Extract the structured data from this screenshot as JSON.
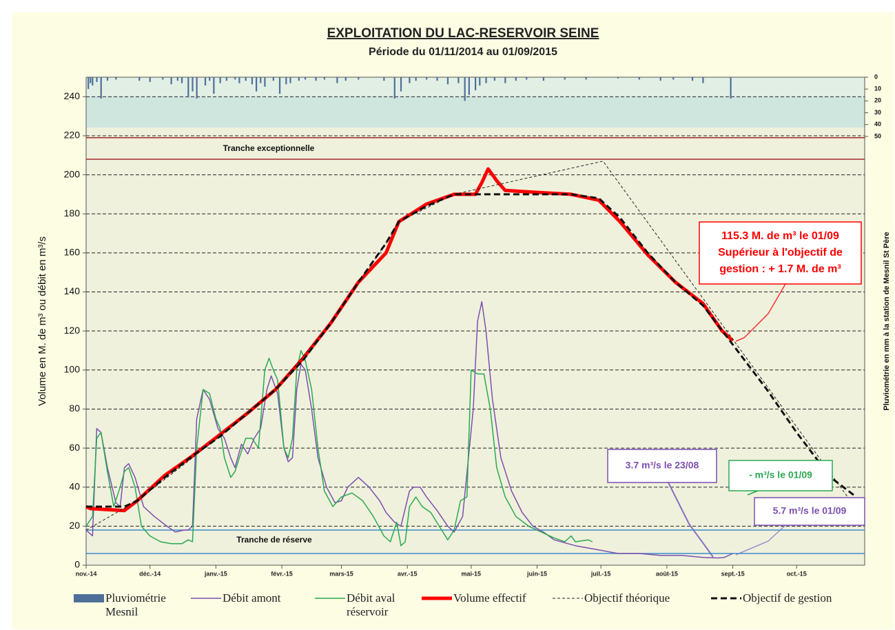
{
  "chart_data": {
    "type": "line",
    "title": "EXPLOITATION DU LAC-RESERVOIR SEINE",
    "subtitle": "Période du 01/11/2014 au 01/09/2015",
    "y_label": "Volume en M. de m³ ou débit en m³/s",
    "y2_label": "Pluviométrie en mm à la station de Mesnil St Père",
    "xlim": [
      0,
      366
    ],
    "xticks": [
      {
        "value": 0,
        "label": "nov.-14"
      },
      {
        "value": 30,
        "label": "déc.-14"
      },
      {
        "value": 61,
        "label": "janv.-15"
      },
      {
        "value": 92,
        "label": "févr.-15"
      },
      {
        "value": 120,
        "label": "mars-15"
      },
      {
        "value": 151,
        "label": "avr.-15"
      },
      {
        "value": 181,
        "label": "mai-15"
      },
      {
        "value": 212,
        "label": "juin-15"
      },
      {
        "value": 242,
        "label": "juil.-15"
      },
      {
        "value": 273,
        "label": "août-15"
      },
      {
        "value": 304,
        "label": "sept.-15"
      },
      {
        "value": 334,
        "label": "oct.-15"
      }
    ],
    "ylim": [
      0,
      250
    ],
    "yticks": [
      0,
      20,
      40,
      60,
      80,
      100,
      120,
      140,
      160,
      180,
      200,
      220,
      240
    ],
    "y2lim": [
      412,
      0
    ],
    "y2ticks": [
      0,
      10,
      20,
      30,
      40,
      50
    ],
    "grid": true,
    "reference_lines": [
      {
        "value": 219,
        "color": "#a3282a"
      },
      {
        "value": 208,
        "color": "#a3282a"
      },
      {
        "value": 18,
        "color": "#3d8ccc"
      },
      {
        "value": 6,
        "color": "#3d8ccc"
      }
    ],
    "zone_labels": [
      "Tranche exceptionnelle",
      "Tranche de réserve"
    ],
    "series": [
      {
        "name": "Pluviométrie Mesnil",
        "type": "bar",
        "axis": "y2",
        "color": "#4f6f9a",
        "x": [
          1,
          2,
          3,
          5,
          7,
          10,
          14,
          25,
          30,
          36,
          40,
          43,
          45,
          48,
          50,
          52,
          56,
          58,
          60,
          63,
          66,
          70,
          72,
          75,
          78,
          80,
          82,
          84,
          88,
          91,
          94,
          96,
          100,
          103,
          108,
          112,
          118,
          122,
          128,
          140,
          145,
          148,
          152,
          155,
          160,
          165,
          170,
          175,
          178,
          180,
          183,
          185,
          188,
          192,
          197,
          202,
          207,
          215,
          225,
          235,
          250,
          260,
          270,
          276,
          285,
          290,
          303
        ],
        "values": [
          10,
          5,
          7,
          4,
          18,
          3,
          2,
          3,
          4,
          2,
          6,
          3,
          5,
          17,
          12,
          18,
          7,
          3,
          14,
          5,
          3,
          2,
          5,
          3,
          6,
          12,
          5,
          8,
          3,
          14,
          6,
          5,
          3,
          2,
          3,
          2,
          5,
          3,
          2,
          3,
          18,
          12,
          5,
          3,
          2,
          3,
          6,
          5,
          20,
          15,
          11,
          7,
          5,
          3,
          5,
          3,
          2,
          3,
          2,
          2,
          1,
          2,
          3,
          2,
          3,
          5,
          18
        ]
      },
      {
        "name": "Débit amont",
        "color": "#7b4fb0",
        "linewidth": 1.5,
        "linestyle": "solid",
        "x": [
          0,
          3,
          5,
          7,
          10,
          14,
          16,
          18,
          20,
          23,
          27,
          32,
          38,
          42,
          46,
          48,
          50,
          52,
          55,
          58,
          62,
          65,
          68,
          70,
          73,
          76,
          79,
          82,
          85,
          87,
          90,
          93,
          95,
          97,
          99,
          101,
          103,
          106,
          109,
          113,
          117,
          120,
          123,
          128,
          133,
          138,
          141,
          145,
          148,
          152,
          154,
          157,
          160,
          165,
          170,
          173,
          177,
          182,
          184,
          186,
          188,
          191,
          195,
          200,
          205,
          210,
          215,
          220,
          230,
          240,
          250,
          260,
          270,
          280,
          290,
          297,
          300,
          304
        ],
        "values": [
          18,
          15,
          70,
          68,
          50,
          32,
          30,
          50,
          52,
          45,
          30,
          25,
          20,
          17,
          18,
          18,
          20,
          75,
          90,
          85,
          70,
          65,
          55,
          50,
          62,
          57,
          65,
          70,
          90,
          97,
          88,
          60,
          53,
          55,
          90,
          103,
          100,
          80,
          55,
          40,
          32,
          33,
          40,
          45,
          40,
          33,
          27,
          22,
          20,
          38,
          40,
          40,
          35,
          28,
          20,
          17,
          25,
          80,
          125,
          135,
          120,
          85,
          55,
          38,
          27,
          20,
          17,
          13,
          10,
          8,
          6,
          6,
          5,
          5,
          4,
          3.7,
          4,
          6
        ]
      },
      {
        "name": "Débit aval réservoir",
        "color": "#2aa852",
        "linewidth": 1.5,
        "linestyle": "solid",
        "x": [
          0,
          3,
          5,
          7,
          10,
          13,
          16,
          18,
          20,
          23,
          26,
          30,
          35,
          40,
          45,
          48,
          50,
          52,
          55,
          58,
          61,
          63,
          65,
          68,
          70,
          72,
          75,
          78,
          81,
          84,
          86,
          88,
          90,
          93,
          95,
          97,
          99,
          101,
          103,
          106,
          109,
          112,
          116,
          120,
          125,
          130,
          135,
          140,
          143,
          146,
          148,
          150,
          152,
          155,
          158,
          162,
          166,
          170,
          173,
          176,
          179,
          181,
          184,
          187,
          190,
          193,
          197,
          202,
          208,
          214,
          220,
          225,
          228,
          230,
          236,
          238
        ],
        "values": [
          20,
          25,
          65,
          68,
          48,
          30,
          40,
          48,
          50,
          40,
          20,
          15,
          12,
          11,
          11,
          13,
          12,
          60,
          90,
          88,
          75,
          70,
          55,
          45,
          48,
          55,
          65,
          65,
          60,
          100,
          106,
          100,
          95,
          60,
          55,
          65,
          100,
          110,
          105,
          90,
          60,
          38,
          30,
          35,
          37,
          33,
          25,
          15,
          12,
          22,
          10,
          12,
          30,
          35,
          30,
          27,
          20,
          13,
          18,
          33,
          35,
          100,
          98,
          98,
          80,
          50,
          35,
          25,
          20,
          17,
          14,
          12,
          15,
          12,
          13,
          12
        ]
      },
      {
        "name": "Volume effectif",
        "color": "#ff0000",
        "linewidth": 5,
        "linestyle": "solid",
        "x": [
          0,
          2,
          18,
          24,
          37,
          50,
          63,
          76,
          89,
          102,
          115,
          128,
          141,
          147,
          160,
          173,
          183,
          186,
          189,
          193,
          197,
          212,
          228,
          241,
          251,
          264,
          277,
          290,
          299,
          304
        ],
        "values": [
          30,
          29,
          28,
          33,
          46,
          56,
          67,
          78,
          90,
          106,
          124,
          145,
          160,
          176,
          185,
          190,
          190,
          196,
          203,
          197,
          192,
          191,
          190,
          187,
          176,
          159,
          145,
          134,
          120,
          115
        ]
      },
      {
        "name": "Objectif théorique",
        "color": "#222222",
        "linewidth": 1,
        "linestyle": "dashed",
        "x": [
          0,
          24,
          50,
          89,
          115,
          141,
          147,
          160,
          173,
          243,
          358
        ],
        "values": [
          18,
          33,
          55,
          90,
          124,
          165,
          176,
          183,
          190,
          207,
          35
        ]
      },
      {
        "name": "Objectif de gestion",
        "color": "#111111",
        "linewidth": 3,
        "linestyle": "dashed",
        "x": [
          0,
          18,
          24,
          37,
          50,
          63,
          76,
          89,
          102,
          115,
          128,
          141,
          147,
          160,
          173,
          228,
          241,
          251,
          264,
          277,
          290,
          304,
          320,
          334,
          350,
          362
        ],
        "values": [
          30,
          30,
          33,
          45,
          56,
          66,
          78,
          90,
          105,
          124,
          145,
          165,
          176,
          184,
          190,
          190,
          188,
          178,
          160,
          145,
          133,
          113,
          90,
          68,
          45,
          35
        ]
      }
    ],
    "callouts": [
      {
        "lines": [
          "115.3 M. de m³  le  01/09",
          "Supérieur à l'objectif de",
          "gestion : + 1.7 M. de m³"
        ],
        "color": "#ff0000"
      },
      {
        "lines": [
          "3.7 m³/s le 23/08"
        ],
        "color": "#7b4fb0"
      },
      {
        "lines": [
          "- m³/s le 01/09"
        ],
        "color": "#2aa852"
      },
      {
        "lines": [
          "5.7 m³/s le 01/09"
        ],
        "color": "#7b4fb0"
      }
    ]
  }
}
